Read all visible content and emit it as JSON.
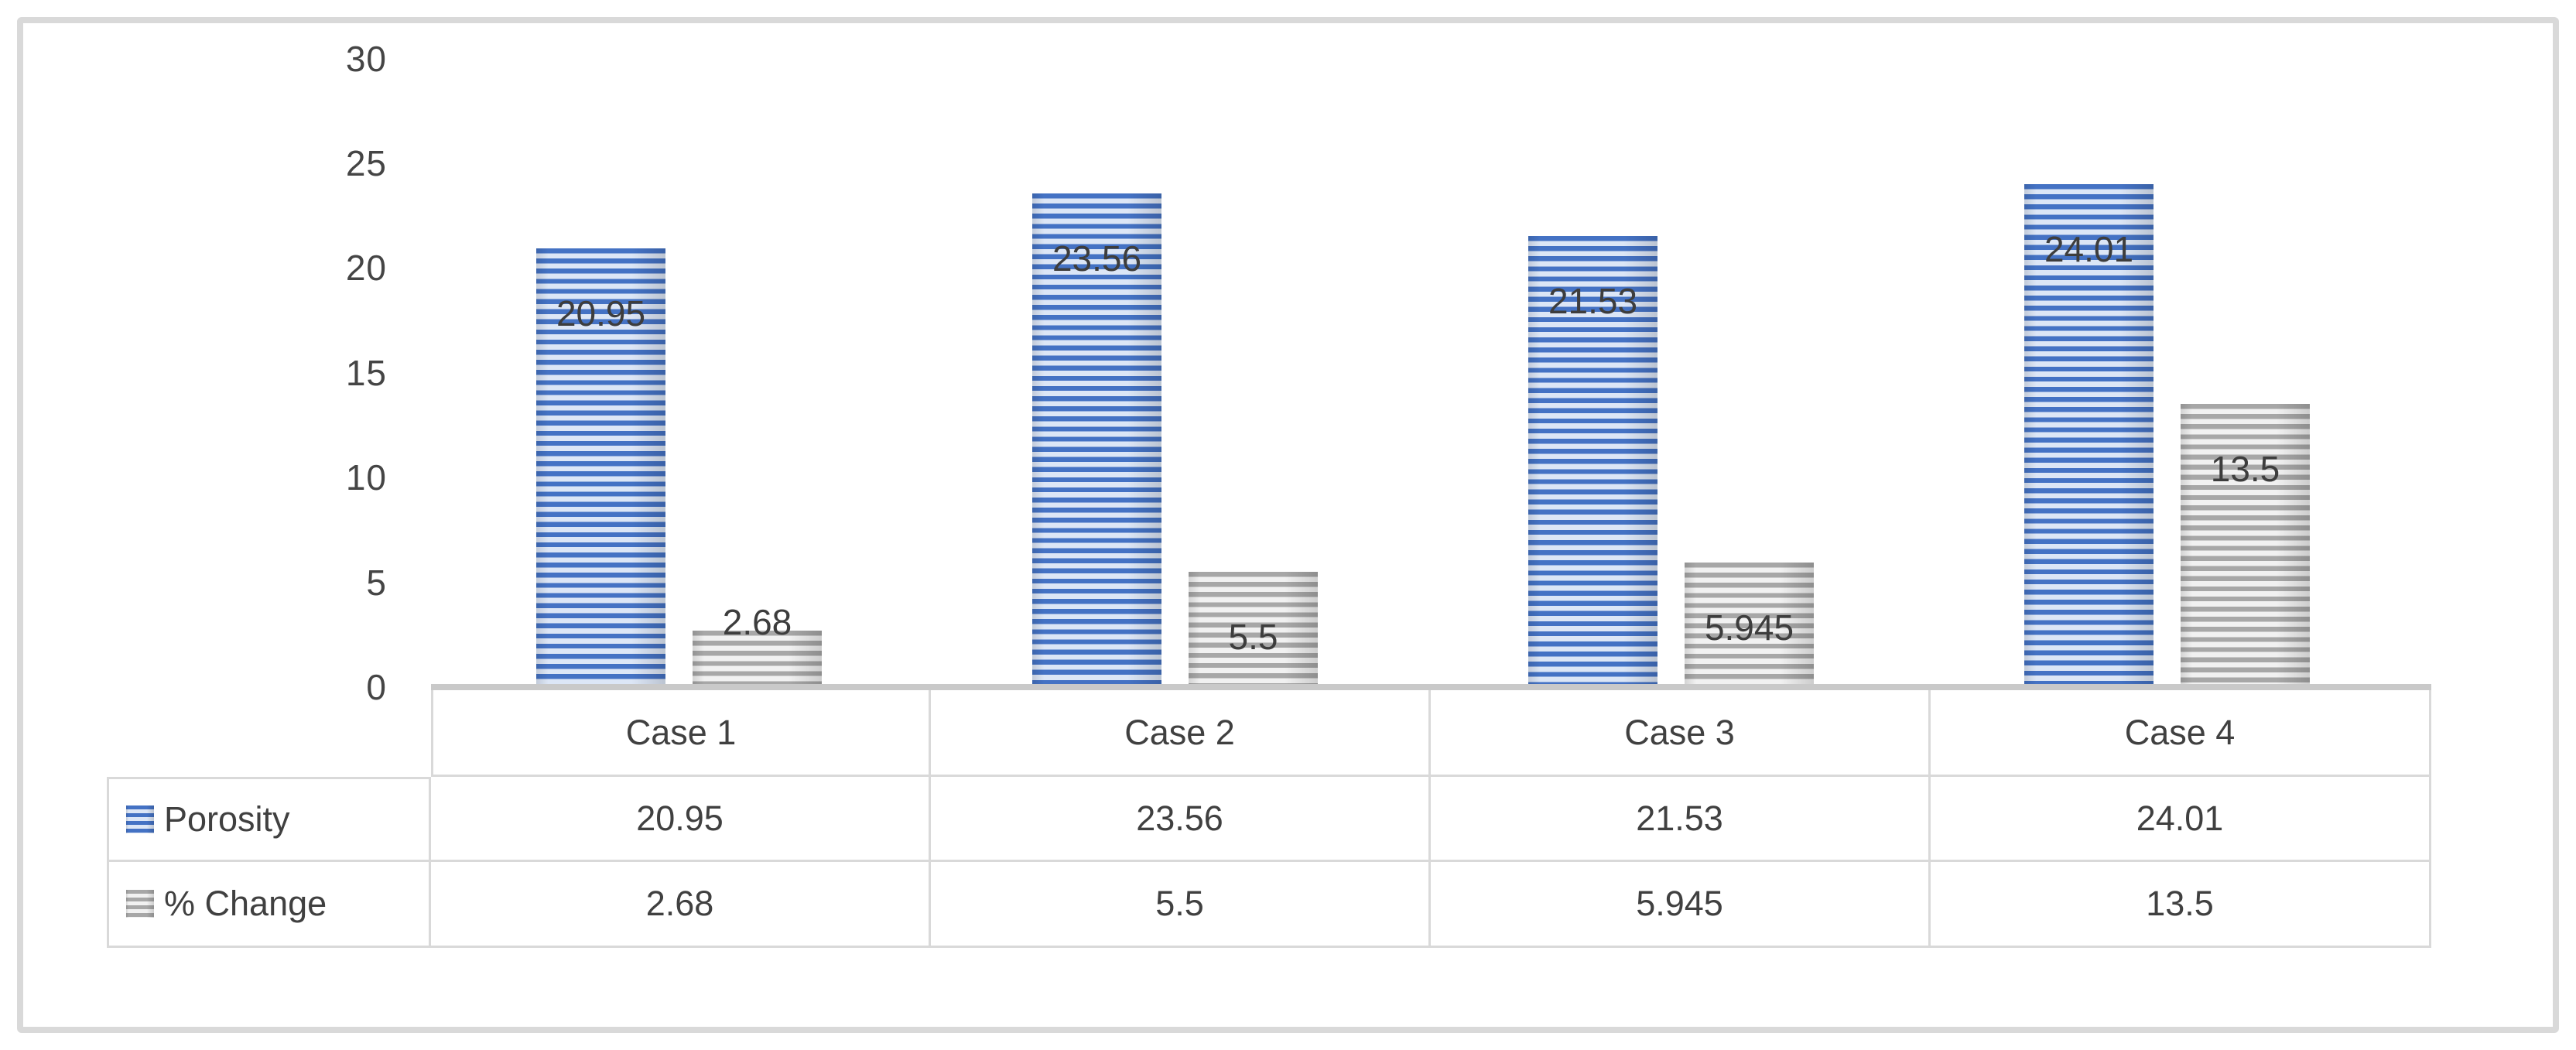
{
  "chart_data": {
    "type": "bar",
    "title": "",
    "xlabel": "",
    "ylabel": "",
    "categories": [
      "Case 1",
      "Case 2",
      "Case 3",
      "Case 4"
    ],
    "series": [
      {
        "name": "Porosity",
        "values": [
          20.95,
          23.56,
          21.53,
          24.01
        ],
        "labels": [
          "20.95",
          "23.56",
          "21.53",
          "24.01"
        ],
        "color": "#4472c4",
        "stripe_light": "#dce6f6"
      },
      {
        "name": "% Change",
        "values": [
          2.68,
          5.5,
          5.945,
          13.5
        ],
        "labels": [
          "2.68",
          "5.5",
          "5.945",
          "13.5"
        ],
        "color": "#a7a7a7",
        "stripe_light": "#f1f1f1"
      }
    ],
    "y_axis": {
      "min": 0,
      "max": 30,
      "tick_interval": 5,
      "tick_labels": [
        "0",
        "5",
        "10",
        "15",
        "20",
        "25",
        "30"
      ]
    },
    "ylim": [
      0,
      30
    ],
    "grid": false,
    "pattern": "horizontal-stripes",
    "legend_position": "data-table-left",
    "data_labels_position": "inside-end",
    "colors": {
      "text": "#404040",
      "axis_line": "#c9c9c9",
      "table_border": "#d9d9d9",
      "figure_border": "#d9d9d9"
    }
  }
}
